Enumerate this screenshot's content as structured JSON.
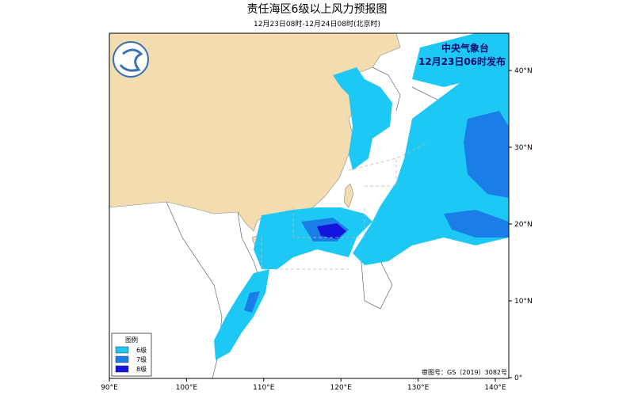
{
  "title": "责任海区6级以上风力预报图",
  "subtitle": "12月23日08时-12月24日08时(北京时)",
  "issuer": "中央气象台",
  "issue_time": "12月23日06时发布",
  "legend": {
    "title": "图例",
    "items": [
      {
        "label": "6级",
        "color": "#1ec8f5"
      },
      {
        "label": "7级",
        "color": "#1a7de8"
      },
      {
        "label": "8级",
        "color": "#1414dc"
      }
    ]
  },
  "lon_ticks": [
    {
      "value": 90,
      "label": "90°E"
    },
    {
      "value": 100,
      "label": "100°E"
    },
    {
      "value": 110,
      "label": "110°E"
    },
    {
      "value": 120,
      "label": "120°E"
    },
    {
      "value": 130,
      "label": "130°E"
    },
    {
      "value": 140,
      "label": "140°E"
    }
  ],
  "lat_ticks": [
    {
      "value": 0,
      "label": "0°"
    },
    {
      "value": 10,
      "label": "10°N"
    },
    {
      "value": 20,
      "label": "20°N"
    },
    {
      "value": 30,
      "label": "30°N"
    },
    {
      "value": 40,
      "label": "40°N"
    }
  ],
  "review_number": "审图号：GS（2019）3082号"
}
